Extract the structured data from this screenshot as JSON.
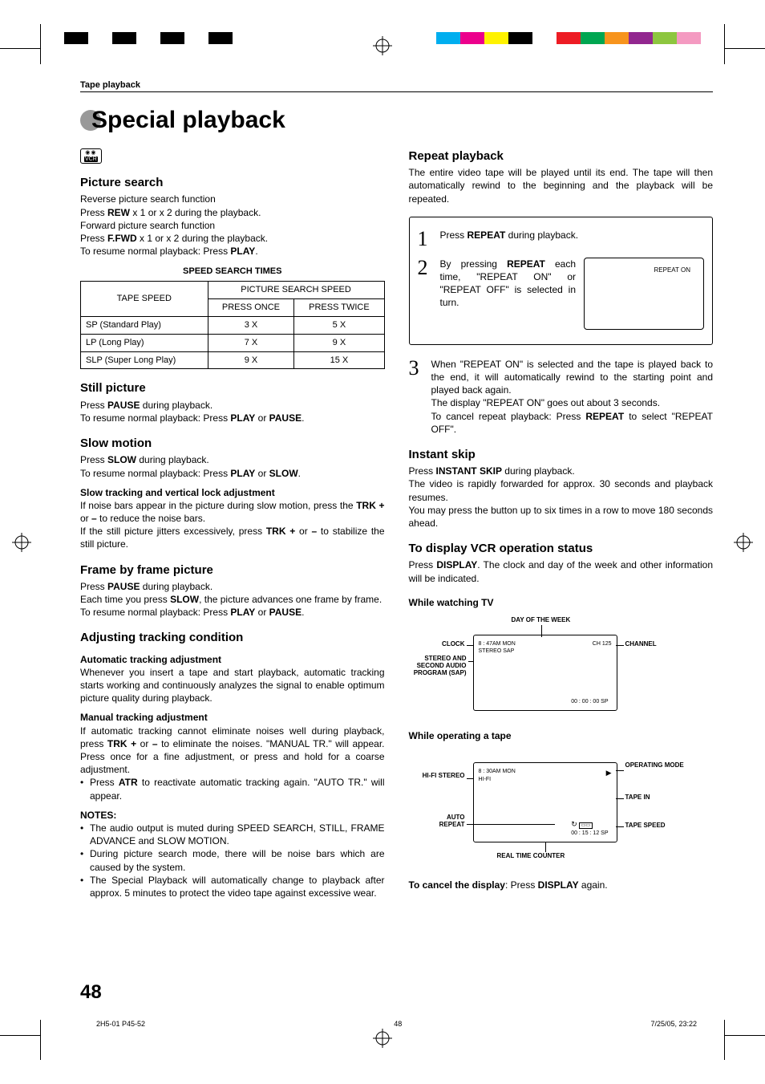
{
  "colorbar_left": [
    "#000000",
    "#ffffff",
    "#000000",
    "#ffffff",
    "#000000",
    "#ffffff",
    "#000000",
    "#ffffff"
  ],
  "colorbar_right": [
    "#00aeef",
    "#ec008c",
    "#fff200",
    "#000000",
    "#ffffff",
    "#ed1c24",
    "#00a651",
    "#f7941d",
    "#92278f",
    "#8dc63f",
    "#f49ac1"
  ],
  "breadcrumb": "Tape playback",
  "title": "Special playback",
  "vcr_badge_top": "◉◉",
  "vcr_badge_bot": "VCR",
  "left": {
    "h_picture": "Picture search",
    "pic1": "Reverse picture search function",
    "pic2_a": "Press ",
    "pic2_b": "REW",
    "pic2_c": " x 1 or x 2 during the playback.",
    "pic3": "Forward picture search function",
    "pic4_a": "Press ",
    "pic4_b": "F.FWD",
    "pic4_c": " x 1 or x 2 during the playback.",
    "pic5_a": "To resume normal playback: Press ",
    "pic5_b": "PLAY",
    "pic5_c": ".",
    "caption": "SPEED SEARCH TIMES",
    "th_tape": "TAPE SPEED",
    "th_pss": "PICTURE SEARCH SPEED",
    "th_once": "PRESS ONCE",
    "th_twice": "PRESS TWICE",
    "rows": [
      {
        "name": "SP (Standard Play)",
        "once": "3 X",
        "twice": "5 X"
      },
      {
        "name": "LP (Long Play)",
        "once": "7 X",
        "twice": "9 X"
      },
      {
        "name": "SLP (Super Long Play)",
        "once": "9 X",
        "twice": "15 X"
      }
    ],
    "h_still": "Still picture",
    "still1_a": "Press ",
    "still1_b": "PAUSE",
    "still1_c": " during playback.",
    "still2_a": "To resume normal playback: Press ",
    "still2_b": "PLAY",
    "still2_c": " or ",
    "still2_d": "PAUSE",
    "still2_e": ".",
    "h_slow": "Slow motion",
    "slow1_a": "Press ",
    "slow1_b": "SLOW",
    "slow1_c": " during playback.",
    "slow2_a": "To resume normal playback: Press ",
    "slow2_b": "PLAY",
    "slow2_c": " or ",
    "slow2_d": "SLOW",
    "slow2_e": ".",
    "h_slowadj": "Slow tracking and vertical lock adjustment",
    "slowadj1_a": "If noise bars appear in the picture during slow motion, press the ",
    "slowadj1_b": "TRK +",
    "slowadj1_c": " or ",
    "slowadj1_d": "–",
    "slowadj1_e": " to reduce the noise bars.",
    "slowadj2_a": "If the still picture jitters excessively, press ",
    "slowadj2_b": "TRK +",
    "slowadj2_c": " or ",
    "slowadj2_d": "–",
    "slowadj2_e": " to stabilize the still picture.",
    "h_frame": "Frame by frame picture",
    "frame1_a": "Press ",
    "frame1_b": "PAUSE",
    "frame1_c": " during playback.",
    "frame2_a": "Each time you press ",
    "frame2_b": "SLOW",
    "frame2_c": ", the picture advances one frame by frame.",
    "frame3_a": "To resume normal playback: Press ",
    "frame3_b": "PLAY",
    "frame3_c": " or ",
    "frame3_d": "PAUSE",
    "frame3_e": ".",
    "h_adj": "Adjusting tracking condition",
    "h_auto": "Automatic tracking adjustment",
    "auto1": "Whenever you insert a tape and start playback, automatic tracking starts working and continuously analyzes the signal to enable optimum picture quality during playback.",
    "h_manual": "Manual tracking adjustment",
    "man1_a": "If automatic tracking cannot eliminate noises well during playback, press ",
    "man1_b": "TRK +",
    "man1_c": " or ",
    "man1_d": "–",
    "man1_e": " to eliminate the noises. \"MANUAL TR.\" will appear. Press once for a fine adjustment, or press and hold for a coarse adjustment.",
    "atr_a": "Press ",
    "atr_b": "ATR",
    "atr_c": " to reactivate automatic tracking again. \"AUTO TR.\" will appear.",
    "h_notes": "NOTES:",
    "note1": "The audio output is muted during SPEED SEARCH, STILL, FRAME ADVANCE and SLOW MOTION.",
    "note2": "During picture search mode, there will be noise bars which are caused by the system.",
    "note3": "The Special Playback will automatically change to playback after approx. 5 minutes to protect the video tape against excessive wear."
  },
  "right": {
    "h_repeat": "Repeat playback",
    "rep_intro": "The entire video tape will be played until its end. The tape will then automatically rewind to the beginning and the playback will be repeated.",
    "s1_a": "Press ",
    "s1_b": "REPEAT",
    "s1_c": " during playback.",
    "s2_a": "By pressing ",
    "s2_b": "REPEAT",
    "s2_c": " each time, \"REPEAT ON\" or \"REPEAT OFF\" is selected in turn.",
    "screen1": "REPEAT ON",
    "s3": "When \"REPEAT ON\" is selected and the tape is played back to the end, it will automatically rewind to the starting point and played back again.",
    "s3b": "The display \"REPEAT ON\" goes out about 3 seconds.",
    "s3c_a": "To cancel repeat playback: Press ",
    "s3c_b": "REPEAT",
    "s3c_c": " to select \"REPEAT OFF\".",
    "h_instant": "Instant skip",
    "inst1_a": "Press ",
    "inst1_b": "INSTANT SKIP",
    "inst1_c": " during playback.",
    "inst2": "The video is rapidly forwarded for approx. 30 seconds and playback resumes.",
    "inst3": "You may press the button up to six times in a row to move 180 seconds ahead.",
    "h_display": "To display VCR operation status",
    "disp1_a": "Press ",
    "disp1_b": "DISPLAY",
    "disp1_c": ". The clock and day of the week and other information will be indicated.",
    "h_watchtv": "While watching TV",
    "tv_clock": "8 : 47AM   MON",
    "tv_stereo": "STEREO   SAP",
    "tv_ch": "CH   125",
    "tv_counter": "00 : 00 : 00   SP",
    "lbl_day": "DAY OF THE WEEK",
    "lbl_clock": "CLOCK",
    "lbl_channel": "CHANNEL",
    "lbl_sap": "STEREO AND SECOND AUDIO PROGRAM (SAP)",
    "h_optape": "While operating a tape",
    "tp_clock": "8 : 30AM   MON",
    "tp_hifi": "HI-FI",
    "tp_counter": "00 : 15 : 12   SP",
    "lbl_hifi": "HI-FI STEREO",
    "lbl_auto": "AUTO REPEAT",
    "lbl_opmode": "OPERATING MODE",
    "lbl_tapein": "TAPE IN",
    "lbl_tapespd": "TAPE SPEED",
    "lbl_rtc": "REAL TIME COUNTER",
    "cancel_a": "To cancel the display",
    "cancel_b": ":  Press ",
    "cancel_c": "DISPLAY",
    "cancel_d": " again."
  },
  "page_num": "48",
  "footer_l": "2H5-01 P45-52",
  "footer_c": "48",
  "footer_r": "7/25/05, 23:22"
}
